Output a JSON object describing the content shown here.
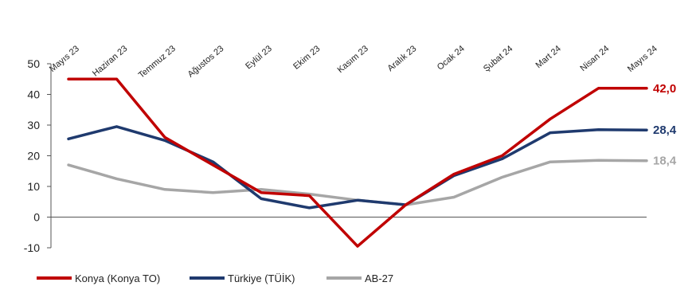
{
  "chart_data": {
    "type": "line",
    "title": "",
    "xlabel": "",
    "ylabel": "",
    "categories": [
      "Mayıs 23",
      "Haziran 23",
      "Temmuz 23",
      "Ağustos 23",
      "Eylül 23",
      "Ekim 23",
      "Kasım 23",
      "Aralık 23",
      "Ocak 24",
      "Şubat 24",
      "Mart 24",
      "Nisan 24",
      "Mayıs 24"
    ],
    "ylim": [
      -10,
      50
    ],
    "yticks": [
      "50",
      "40",
      "30",
      "20",
      "10",
      "0",
      "-10"
    ],
    "grid": false,
    "legend_position": "bottom-left",
    "series": [
      {
        "name": "Konya (Konya TO)",
        "color": "#c00000",
        "values": [
          45,
          45,
          26,
          17,
          8,
          7,
          -9.5,
          4,
          14,
          20,
          32,
          42,
          42
        ],
        "end_label": "42,0"
      },
      {
        "name": "Türkiye (TÜİK)",
        "color": "#1f3a6e",
        "values": [
          25.5,
          29.5,
          25,
          18,
          6,
          3,
          5.5,
          4,
          13.5,
          19,
          27.5,
          28.5,
          28.4
        ],
        "end_label": "28,4"
      },
      {
        "name": "AB-27",
        "color": "#a6a6a6",
        "values": [
          17,
          12.5,
          9,
          8,
          9,
          7.5,
          5.5,
          4,
          6.5,
          13,
          18,
          18.5,
          18.4
        ],
        "end_label": "18,4"
      }
    ]
  }
}
